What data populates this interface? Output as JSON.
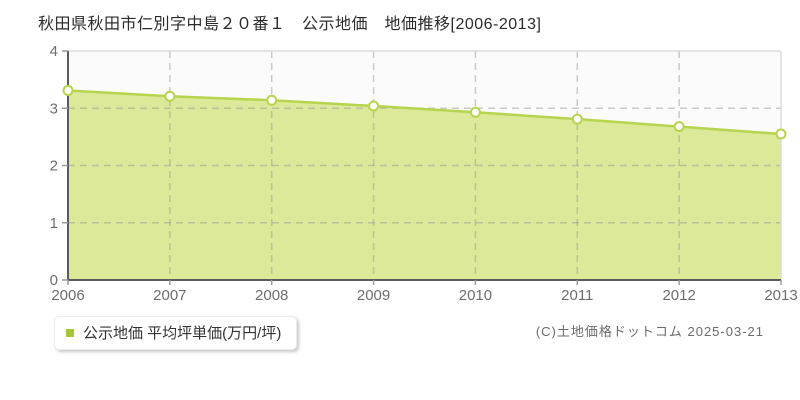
{
  "title": "秋田県秋田市仁別字中島２０番１　公示地価　地価推移[2006-2013]",
  "legend": {
    "label": "公示地価 平均坪単価(万円/坪)",
    "marker_color": "#a4c637"
  },
  "copyright": "(C)土地価格ドットコム 2025-03-21",
  "chart_data": {
    "type": "area",
    "x": [
      "2006",
      "2007",
      "2008",
      "2009",
      "2010",
      "2011",
      "2012",
      "2013"
    ],
    "series": [
      {
        "name": "公示地価 平均坪単価(万円/坪)",
        "values": [
          3.31,
          3.21,
          3.14,
          3.04,
          2.93,
          2.81,
          2.68,
          2.55
        ]
      }
    ],
    "title": "秋田県秋田市仁別字中島２０番１ 公示地価 地価推移[2006-2013]",
    "xlabel": "",
    "ylabel": "",
    "ylim": [
      0,
      4
    ],
    "yticks": [
      0,
      1,
      2,
      3,
      4
    ],
    "grid": true,
    "legend_position": "bottom-left",
    "colors": {
      "line": "#b6d44e",
      "fill": "#dce998",
      "marker_fill": "#ffffff",
      "marker_stroke": "#b6d44e",
      "grid": "#9a9a9a",
      "axis": "#5b5b5b",
      "tick": "#9a9a9a",
      "border": "#dcdcdc",
      "plot_bg": "#fbfbfb",
      "tick_label": "#6e6e6e"
    }
  }
}
